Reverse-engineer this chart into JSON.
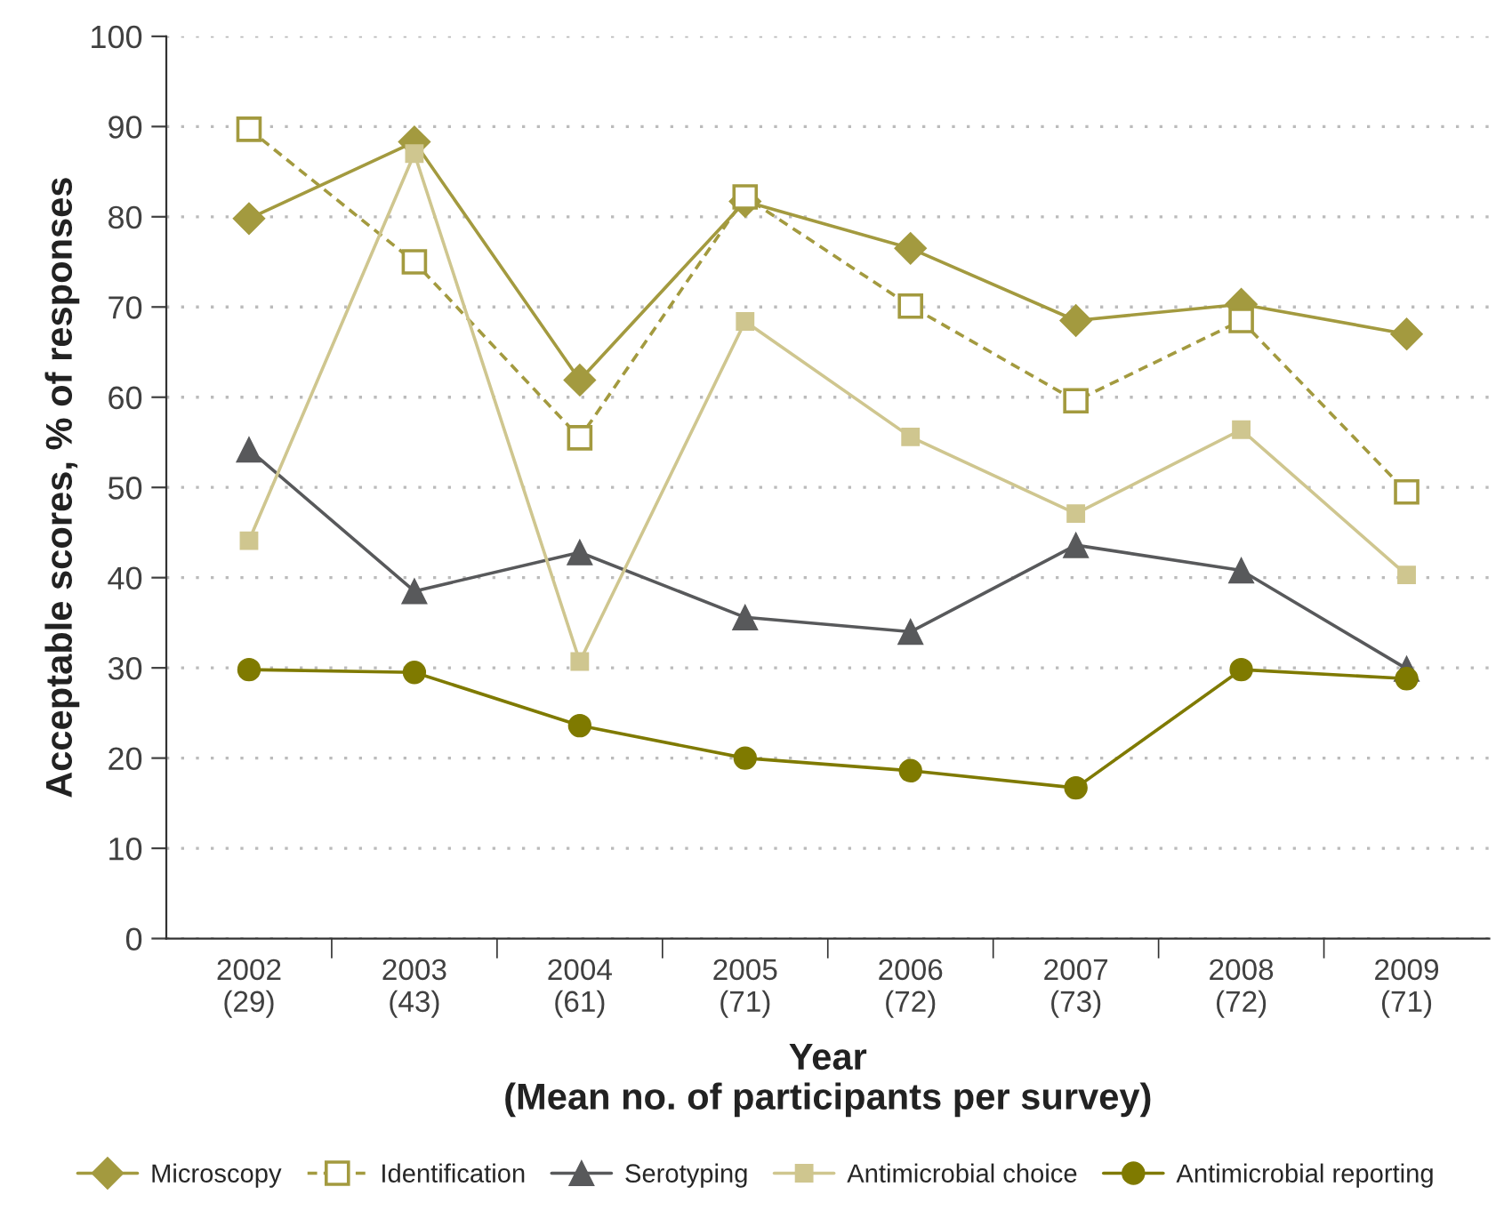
{
  "chart_data": {
    "type": "line",
    "xlabel": "Year\n(Mean no. of participants per survey)",
    "ylabel": "Acceptable scores, % of responses",
    "categories": [
      "2002\n(29)",
      "2003\n(43)",
      "2004\n(61)",
      "2005\n(71)",
      "2006\n(72)",
      "2007\n(73)",
      "2008\n(72)",
      "2009\n(71)"
    ],
    "ylim": [
      0,
      100
    ],
    "yticks": [
      0,
      10,
      20,
      30,
      40,
      50,
      60,
      70,
      80,
      90,
      100
    ],
    "grid": "y",
    "legend": "bottom",
    "series": [
      {
        "name": "Microscopy",
        "color": "#a39a3f",
        "marker": "diamond",
        "line_style": "solid",
        "values": [
          79.8,
          88.3,
          61.9,
          81.7,
          76.5,
          68.5,
          70.3,
          67.0
        ]
      },
      {
        "name": "Identification",
        "color": "#a39a3f",
        "marker": "square",
        "line_style": "dashed",
        "values": [
          89.7,
          75.0,
          55.5,
          82.2,
          70.1,
          59.6,
          68.5,
          49.5
        ]
      },
      {
        "name": "Serotyping",
        "color": "#58595b",
        "marker": "triangle",
        "line_style": "solid",
        "values": [
          54.2,
          38.5,
          42.8,
          35.6,
          34.0,
          43.6,
          40.8,
          29.9
        ]
      },
      {
        "name": "Antimicrobial choice",
        "color": "#cfc68f",
        "marker": "square",
        "line_style": "solid",
        "values": [
          44.1,
          87.0,
          30.7,
          68.4,
          55.6,
          47.1,
          56.4,
          40.3
        ]
      },
      {
        "name": "Antimicrobial reporting",
        "color": "#7f7a00",
        "marker": "circle",
        "line_style": "solid",
        "values": [
          29.8,
          29.5,
          23.6,
          20.0,
          18.6,
          16.7,
          29.8,
          28.8
        ]
      }
    ]
  }
}
